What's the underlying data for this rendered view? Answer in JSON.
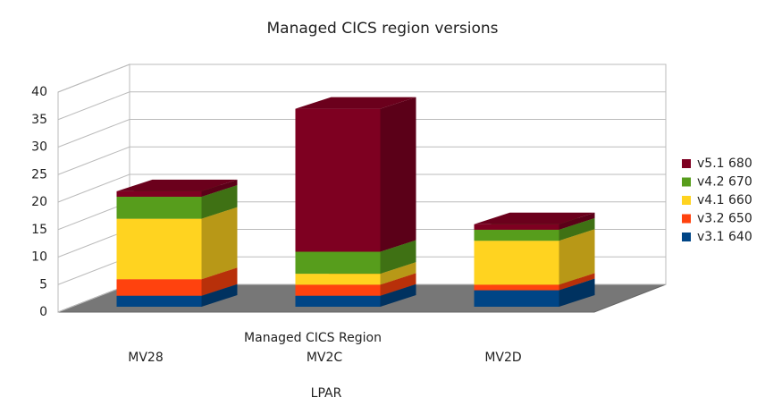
{
  "chart_data": {
    "type": "bar3d_stacked",
    "title": "Managed CICS region versions",
    "x_label": "Managed CICS Region",
    "x_axis_title": "LPAR",
    "categories": [
      "MV28",
      "MV2C",
      "MV2D"
    ],
    "series": [
      {
        "name": "v3.1 640",
        "color": "#004586",
        "values": [
          2,
          2,
          3
        ]
      },
      {
        "name": "v3.2 650",
        "color": "#ff420e",
        "values": [
          3,
          2,
          1
        ]
      },
      {
        "name": "v4.1 660",
        "color": "#ffd320",
        "values": [
          11,
          2,
          8
        ]
      },
      {
        "name": "v4.2 670",
        "color": "#579d1c",
        "values": [
          4,
          4,
          2
        ]
      },
      {
        "name": "v5.1 680",
        "color": "#7e0021",
        "values": [
          1,
          26,
          1
        ]
      }
    ],
    "ylim": [
      0,
      40
    ],
    "yticks": [
      0,
      5,
      10,
      15,
      20,
      25,
      30,
      35,
      40
    ],
    "grid": true,
    "legend": "right"
  }
}
